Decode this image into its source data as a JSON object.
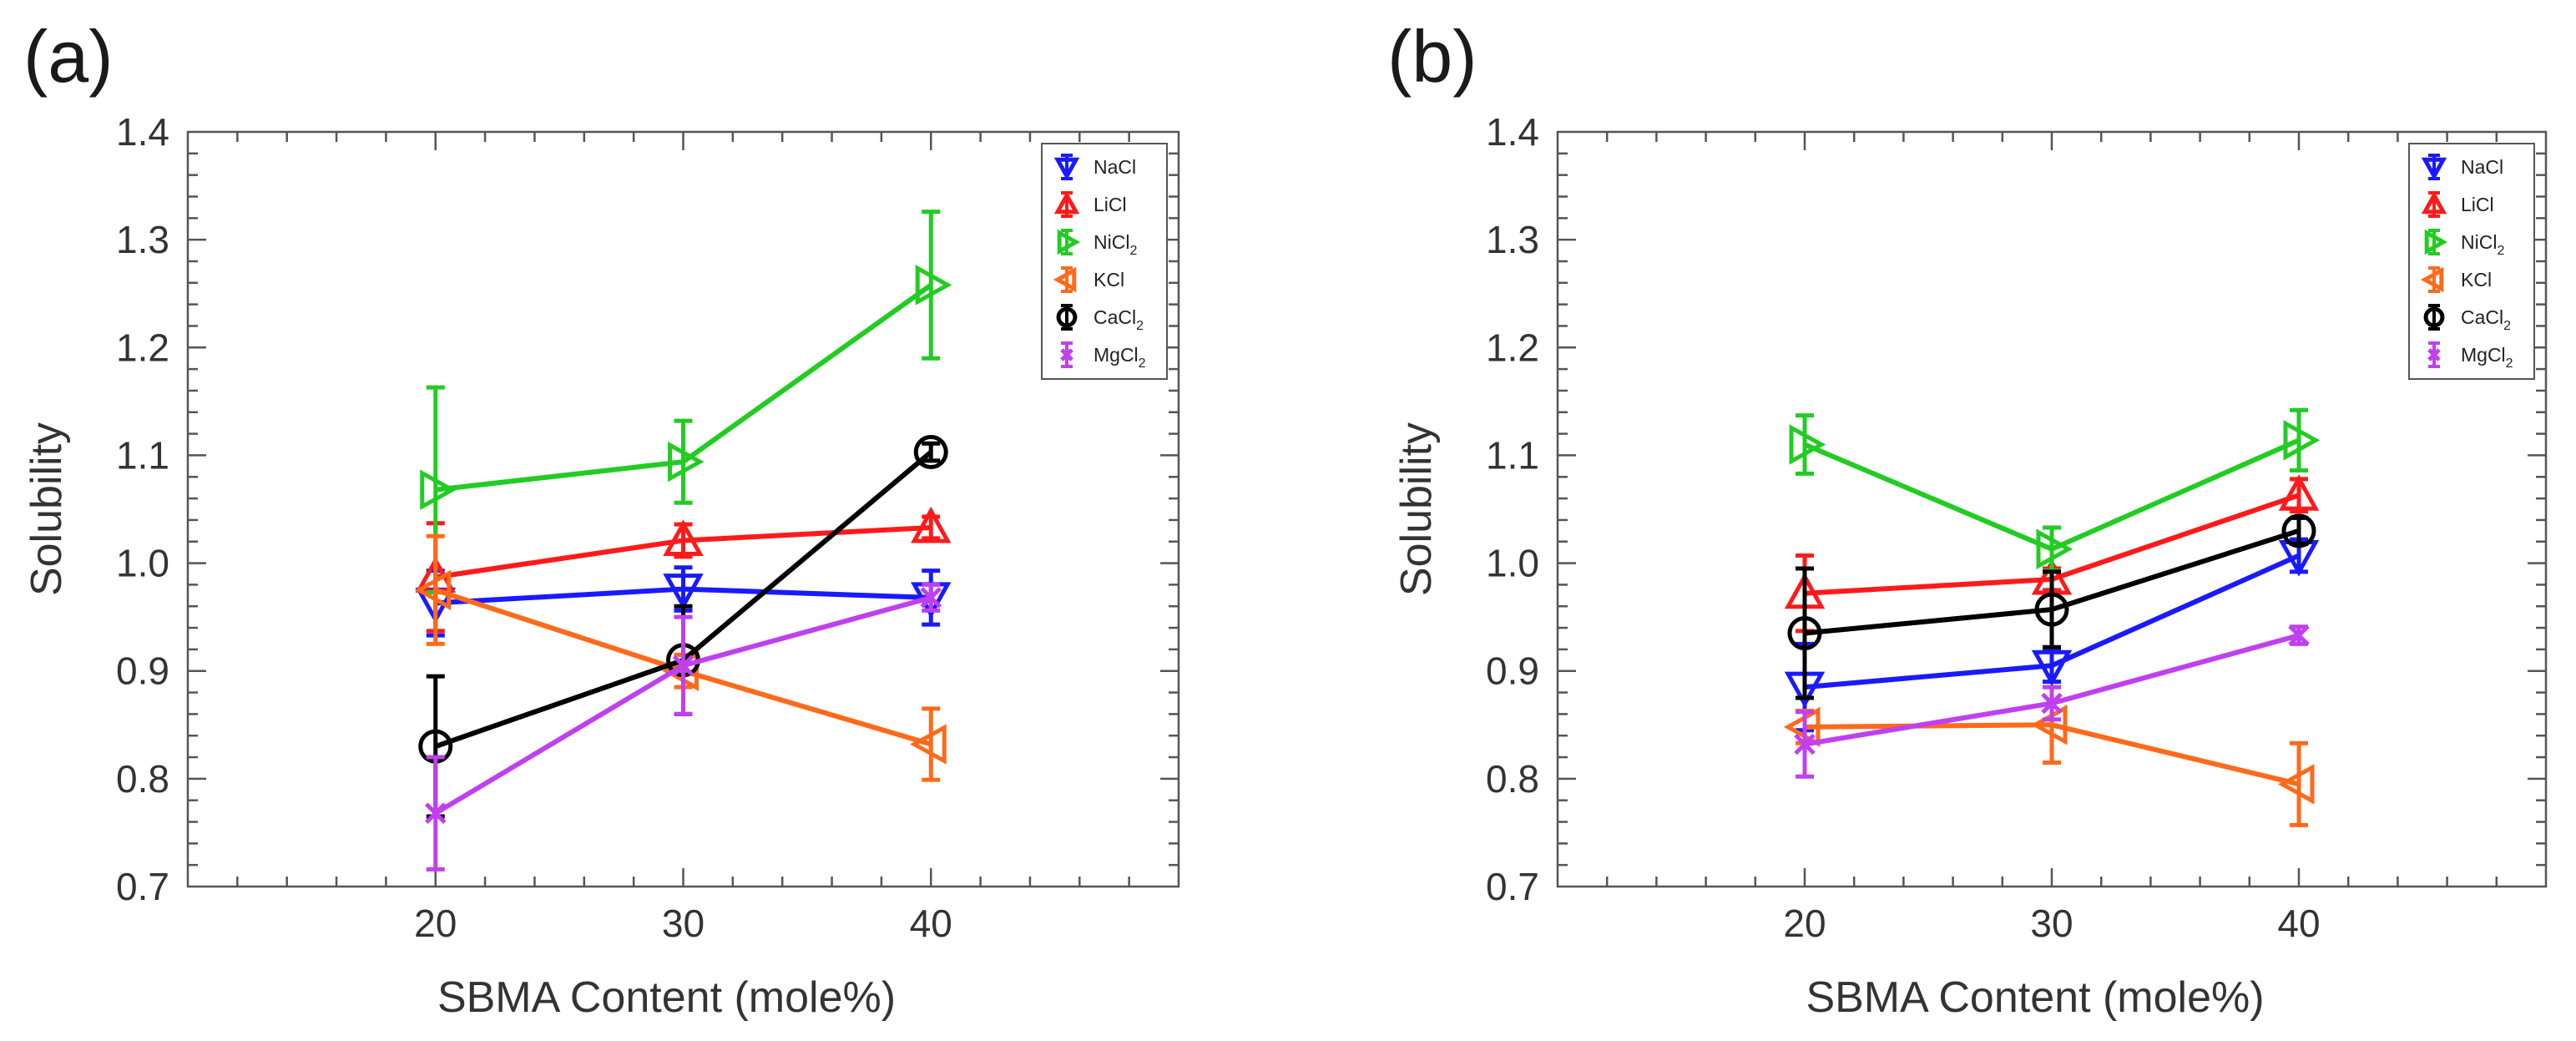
{
  "chart_data": [
    {
      "type": "line",
      "panel_label": "(a)",
      "xlabel": "SBMA Content (mole%)",
      "ylabel": "Solubility",
      "xlim": [
        10,
        50
      ],
      "ylim": [
        0.7,
        1.4
      ],
      "x_ticks": [
        20,
        30,
        40
      ],
      "x_tick_labels": [
        "20",
        "30",
        "40"
      ],
      "y_ticks": [
        0.7,
        0.8,
        0.9,
        1.0,
        1.1,
        1.2,
        1.3,
        1.4
      ],
      "y_tick_labels": [
        "0.7",
        "0.8",
        "0.9",
        "1.0",
        "1.1",
        "1.2",
        "1.3",
        "1.4"
      ],
      "legend_position": "top-right",
      "series": [
        {
          "name": "NaCl",
          "sub": "",
          "color": "#1a1aff",
          "marker": "triangle-down",
          "x": [
            20,
            30,
            40
          ],
          "values": [
            0.963,
            0.976,
            0.968
          ],
          "errors": [
            0.03,
            0.02,
            0.025
          ]
        },
        {
          "name": "LiCl",
          "sub": "",
          "color": "#ff1a1a",
          "marker": "triangle-up",
          "x": [
            20,
            30,
            40
          ],
          "values": [
            0.987,
            1.021,
            1.033
          ],
          "errors": [
            0.05,
            0.015,
            0.01
          ]
        },
        {
          "name": "NiCl",
          "sub": "2",
          "color": "#22cc22",
          "marker": "triangle-right",
          "x": [
            20,
            30,
            40
          ],
          "values": [
            1.068,
            1.094,
            1.258
          ],
          "errors": [
            0.095,
            0.038,
            0.068
          ]
        },
        {
          "name": "KCl",
          "sub": "",
          "color": "#ff6a1a",
          "marker": "triangle-left",
          "x": [
            20,
            30,
            40
          ],
          "values": [
            0.975,
            0.9,
            0.832
          ],
          "errors": [
            0.05,
            0.015,
            0.033
          ]
        },
        {
          "name": "CaCl",
          "sub": "2",
          "color": "#000000",
          "marker": "circle",
          "x": [
            20,
            30,
            40
          ],
          "values": [
            0.83,
            0.91,
            1.103
          ],
          "errors": [
            0.065,
            0.05,
            0.008
          ]
        },
        {
          "name": "MgCl",
          "sub": "2",
          "color": "#c040f0",
          "marker": "cross",
          "x": [
            20,
            30,
            40
          ],
          "values": [
            0.768,
            0.905,
            0.968
          ],
          "errors": [
            0.052,
            0.045,
            0.012
          ]
        }
      ]
    },
    {
      "type": "line",
      "panel_label": "(b)",
      "xlabel": "SBMA Content (mole%)",
      "ylabel": "Solubility",
      "xlim": [
        10,
        50
      ],
      "ylim": [
        0.7,
        1.4
      ],
      "x_ticks": [
        20,
        30,
        40
      ],
      "x_tick_labels": [
        "20",
        "30",
        "40"
      ],
      "y_ticks": [
        0.7,
        0.8,
        0.9,
        1.0,
        1.1,
        1.2,
        1.3,
        1.4
      ],
      "y_tick_labels": [
        "0.7",
        "0.8",
        "0.9",
        "1.0",
        "1.1",
        "1.2",
        "1.3",
        "1.4"
      ],
      "legend_position": "top-right",
      "series": [
        {
          "name": "NaCl",
          "sub": "",
          "color": "#1a1aff",
          "marker": "triangle-down",
          "x": [
            20,
            30,
            40
          ],
          "values": [
            0.885,
            0.905,
            1.007
          ],
          "errors": [
            0.04,
            0.015,
            0.015
          ]
        },
        {
          "name": "LiCl",
          "sub": "",
          "color": "#ff1a1a",
          "marker": "triangle-up",
          "x": [
            20,
            30,
            40
          ],
          "values": [
            0.972,
            0.985,
            1.063
          ],
          "errors": [
            0.035,
            0.01,
            0.015
          ]
        },
        {
          "name": "NiCl",
          "sub": "2",
          "color": "#22cc22",
          "marker": "triangle-right",
          "x": [
            20,
            30,
            40
          ],
          "values": [
            1.11,
            1.013,
            1.114
          ],
          "errors": [
            0.027,
            0.02,
            0.028
          ]
        },
        {
          "name": "KCl",
          "sub": "",
          "color": "#ff6a1a",
          "marker": "triangle-left",
          "x": [
            20,
            30,
            40
          ],
          "values": [
            0.848,
            0.85,
            0.795
          ],
          "errors": [
            0.015,
            0.035,
            0.038
          ]
        },
        {
          "name": "CaCl",
          "sub": "2",
          "color": "#000000",
          "marker": "circle",
          "x": [
            20,
            30,
            40
          ],
          "values": [
            0.935,
            0.957,
            1.03
          ],
          "errors": [
            0.06,
            0.035,
            0.012
          ]
        },
        {
          "name": "MgCl",
          "sub": "2",
          "color": "#c040f0",
          "marker": "cross",
          "x": [
            20,
            30,
            40
          ],
          "values": [
            0.832,
            0.87,
            0.933
          ],
          "errors": [
            0.03,
            0.015,
            0.008
          ]
        }
      ]
    }
  ]
}
